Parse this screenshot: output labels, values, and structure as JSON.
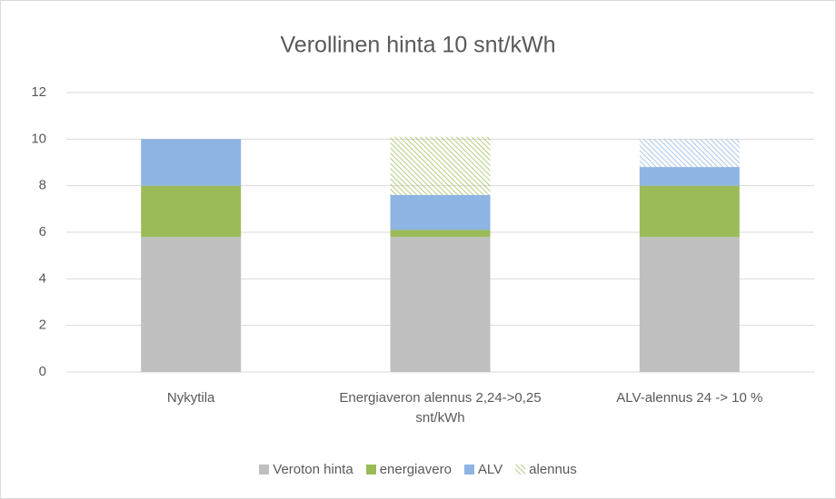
{
  "chart_data": {
    "type": "stacked_bar",
    "title": "Verollinen hinta 10 snt/kWh",
    "categories": [
      "Nykytila",
      "Energiaveron alennus 2,24->0,25 snt/kWh",
      "ALV-alennus 24 -> 10 %"
    ],
    "series": [
      {
        "name": "Veroton hinta",
        "color": "#bfbfbf",
        "values": [
          5.8,
          5.8,
          5.8
        ]
      },
      {
        "name": "energiavero",
        "color": "#9bbb59",
        "values": [
          2.2,
          0.3,
          2.2
        ]
      },
      {
        "name": "ALV",
        "color": "#8eb4e3",
        "values": [
          2.0,
          1.5,
          0.8
        ]
      },
      {
        "name": "alennus",
        "color": "#9bbb59",
        "hatch": true,
        "point_colors": [
          null,
          "#9bbb59",
          "#8eb4e3"
        ],
        "values": [
          0,
          2.5,
          1.2
        ]
      }
    ],
    "ylim": [
      0,
      12
    ],
    "yticks": [
      0,
      2,
      4,
      6,
      8,
      10,
      12
    ],
    "grid": true,
    "legend": "bottom"
  }
}
